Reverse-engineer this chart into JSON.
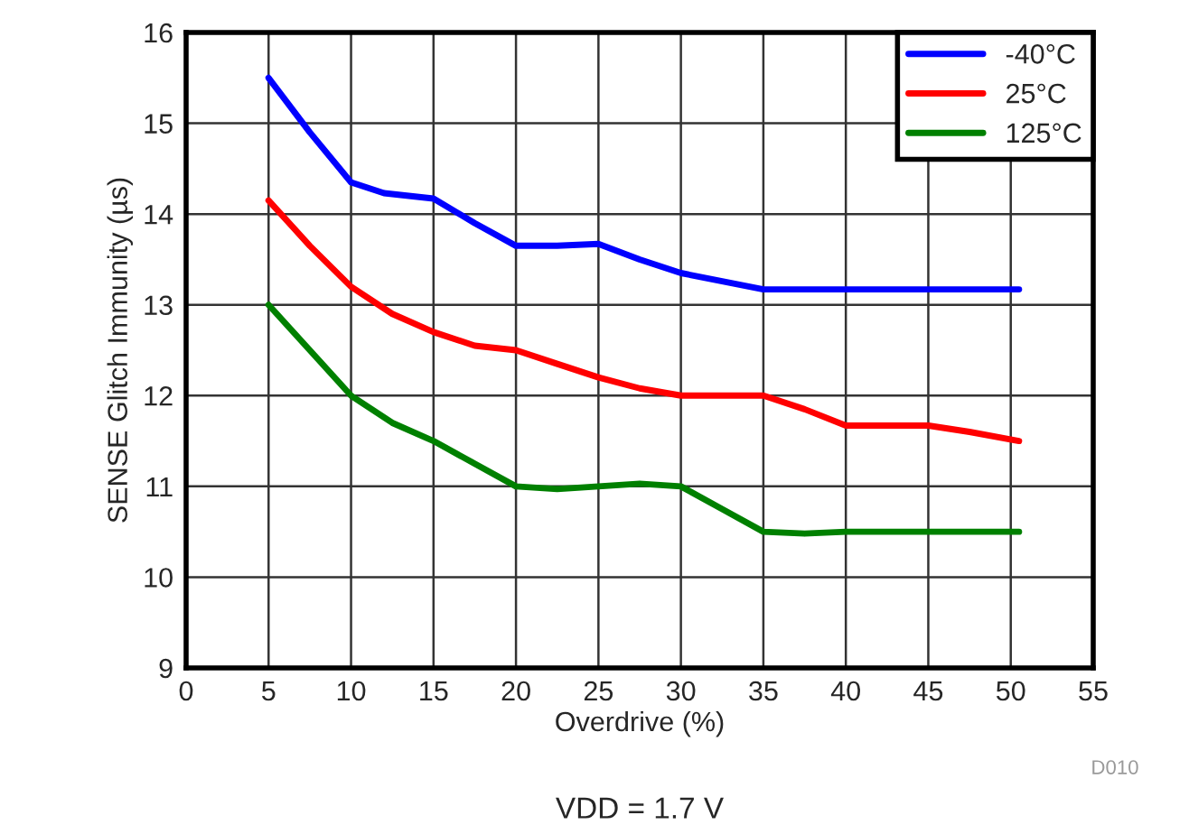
{
  "chart_data": {
    "type": "line",
    "xlabel": "Overdrive (%)",
    "ylabel": "SENSE Glitch Immunity (µs)",
    "xlim": [
      0,
      55
    ],
    "xticks": [
      0,
      5,
      10,
      15,
      20,
      25,
      30,
      35,
      40,
      45,
      50,
      55
    ],
    "ylim": [
      9,
      16
    ],
    "yticks": [
      9,
      10,
      11,
      12,
      13,
      14,
      15,
      16
    ],
    "grid": true,
    "legend": "top right",
    "line_style": "solid",
    "series": [
      {
        "name": "-40°C",
        "color": "#0000ff",
        "x": [
          5,
          7.5,
          10,
          12,
          15,
          17.5,
          20,
          22.5,
          25,
          27.5,
          30,
          35,
          40,
          45,
          50.5
        ],
        "values": [
          15.5,
          14.9,
          14.35,
          14.23,
          14.17,
          13.9,
          13.65,
          13.65,
          13.67,
          13.5,
          13.35,
          13.17,
          13.17,
          13.17,
          13.17
        ]
      },
      {
        "name": "25°C",
        "color": "#ff0000",
        "x": [
          5,
          7.5,
          10,
          12.5,
          15,
          17.5,
          20,
          22.5,
          25,
          27.5,
          30,
          32.5,
          35,
          37.5,
          40,
          42.5,
          45,
          47.5,
          50.5
        ],
        "values": [
          14.15,
          13.65,
          13.2,
          12.9,
          12.7,
          12.55,
          12.5,
          12.35,
          12.2,
          12.08,
          12.0,
          12.0,
          12.0,
          11.85,
          11.67,
          11.67,
          11.67,
          11.6,
          11.5
        ]
      },
      {
        "name": "125°C",
        "color": "#008000",
        "x": [
          5,
          7.5,
          10,
          12.5,
          15,
          17.5,
          20,
          22.5,
          25,
          27.5,
          30,
          32.5,
          35,
          37.5,
          40,
          45,
          50.5
        ],
        "values": [
          13.0,
          12.5,
          12.0,
          11.7,
          11.5,
          11.25,
          11.0,
          10.97,
          11.0,
          11.03,
          11.0,
          10.75,
          10.5,
          10.48,
          10.5,
          10.5,
          10.5
        ]
      }
    ],
    "annotations": [
      "VDD = 1.7 V",
      "D010"
    ]
  }
}
